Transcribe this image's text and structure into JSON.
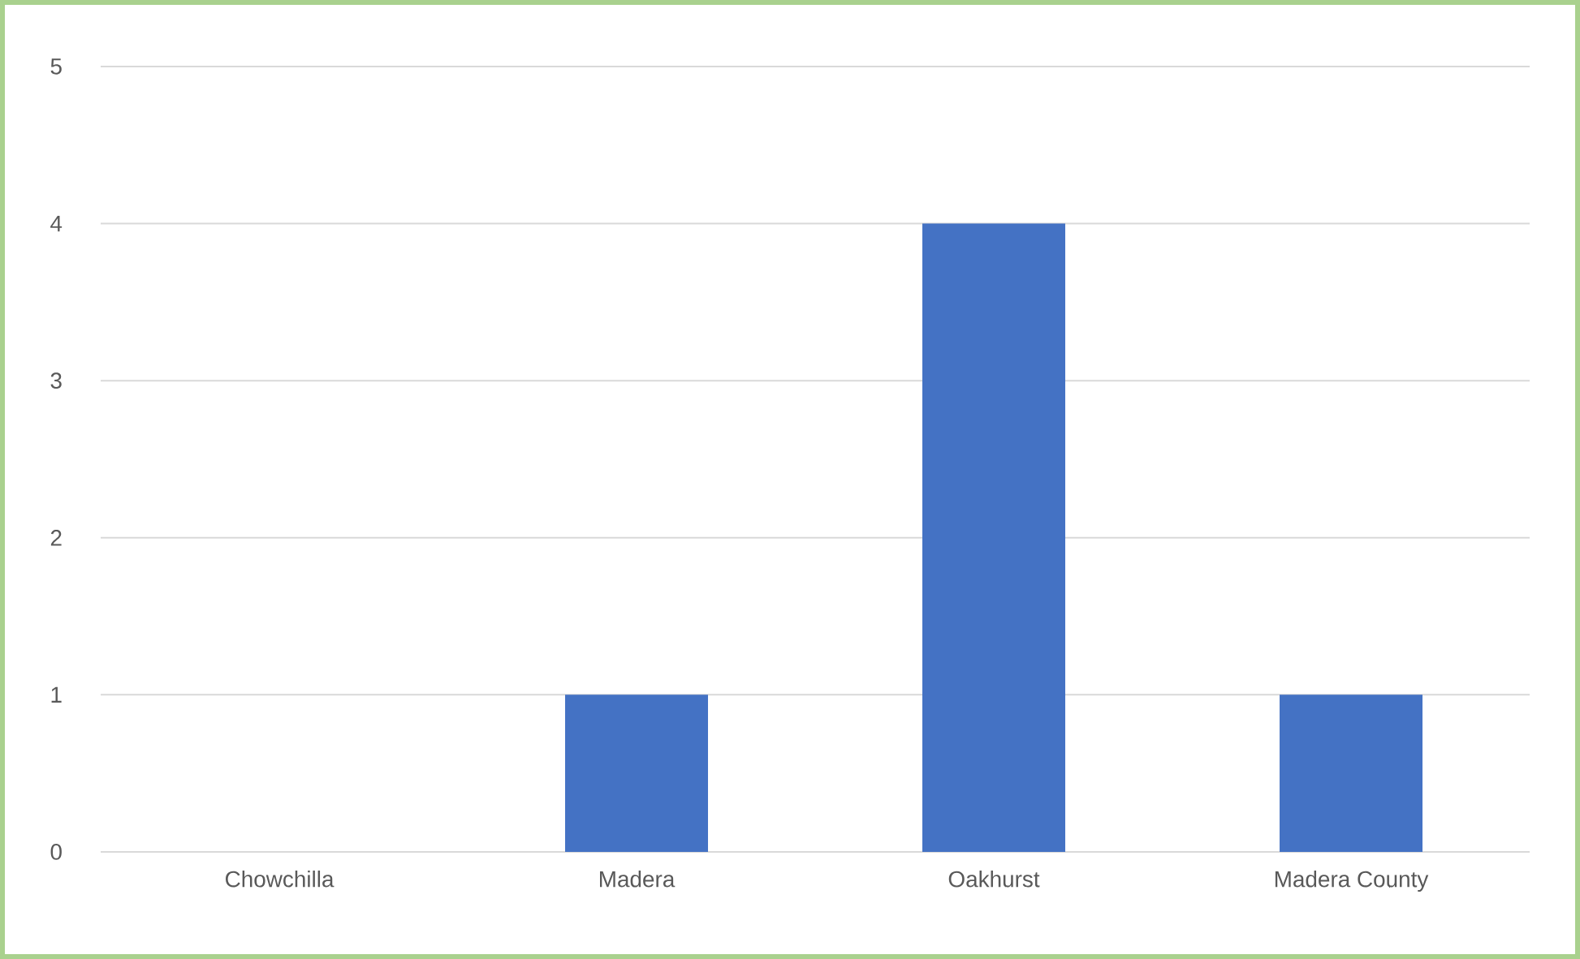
{
  "chart_data": {
    "type": "bar",
    "categories": [
      "Chowchilla",
      "Madera",
      "Oakhurst",
      "Madera County"
    ],
    "values": [
      0,
      1,
      4,
      1
    ],
    "color": "#4472c4",
    "ylim": [
      0,
      5
    ],
    "yticks": [
      0,
      1,
      2,
      3,
      4,
      5
    ],
    "grid": "y"
  }
}
